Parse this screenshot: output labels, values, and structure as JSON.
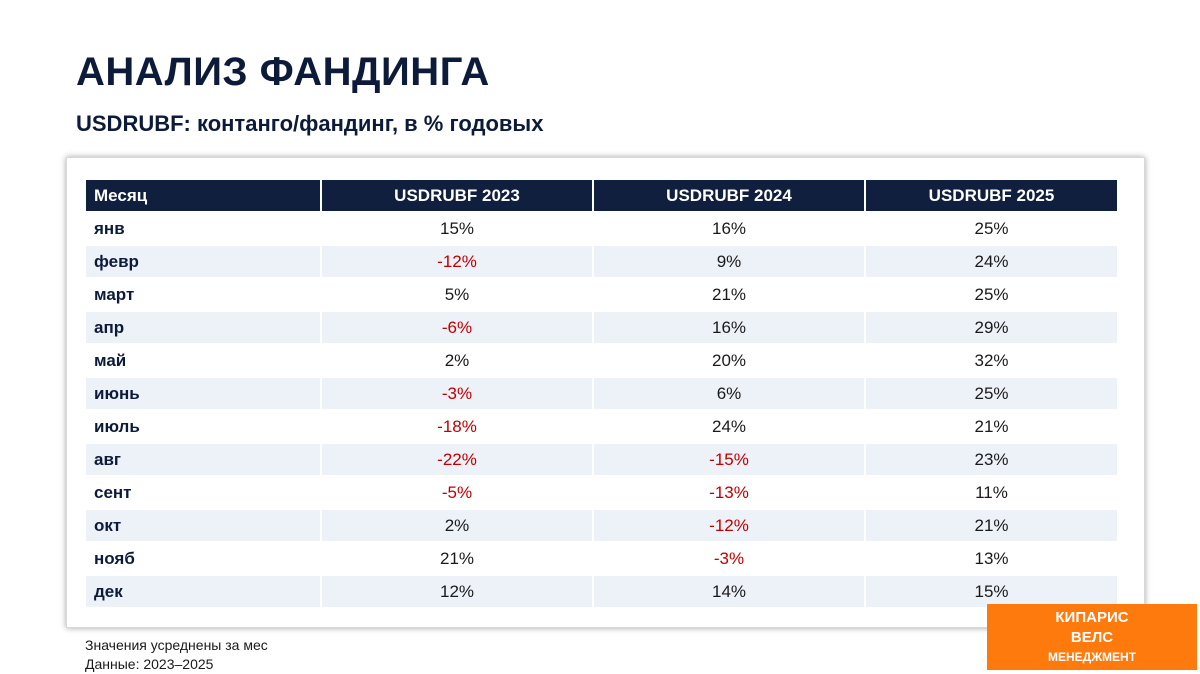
{
  "title": "АНАЛИЗ ФАНДИНГА",
  "subtitle": "USDRUBF: контанго/фандинг, в % годовых",
  "table": {
    "headers": [
      "Месяц",
      "USDRUBF 2023",
      "USDRUBF 2024",
      "USDRUBF 2025"
    ],
    "rows": [
      [
        "янв",
        "15%",
        "16%",
        "25%"
      ],
      [
        "февр",
        "-12%",
        "9%",
        "24%"
      ],
      [
        "март",
        "5%",
        "21%",
        "25%"
      ],
      [
        "апр",
        "-6%",
        "16%",
        "29%"
      ],
      [
        "май",
        "2%",
        "20%",
        "32%"
      ],
      [
        "июнь",
        "-3%",
        "6%",
        "25%"
      ],
      [
        "июль",
        "-18%",
        "24%",
        "21%"
      ],
      [
        "авг",
        "-22%",
        "-15%",
        "23%"
      ],
      [
        "сент",
        "-5%",
        "-13%",
        "11%"
      ],
      [
        "окт",
        "2%",
        "-12%",
        "21%"
      ],
      [
        "нояб",
        "21%",
        "-3%",
        "13%"
      ],
      [
        "дек",
        "12%",
        "14%",
        "15%"
      ]
    ]
  },
  "footnotes": [
    "Значения усреднены за мес",
    "Данные: 2023–2025"
  ],
  "logo": {
    "line1": "КИПАРИС",
    "line2": "ВЕЛС",
    "line3": "МЕНЕДЖМЕНТ"
  },
  "colors": {
    "header_bg": "#0f1f3d",
    "stripe": "#edf1f8",
    "negative": "#c00000",
    "logo_bg": "#ff7a0c"
  }
}
